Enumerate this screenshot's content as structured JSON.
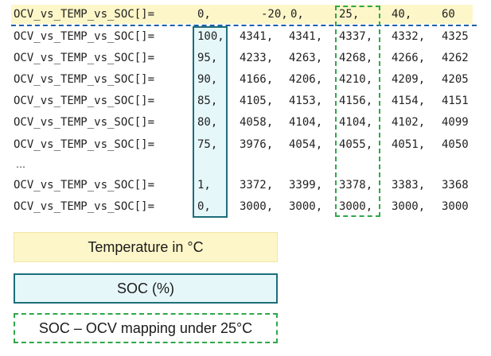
{
  "label": "OCV_vs_TEMP_vs_SOC[]=",
  "header": {
    "values": [
      "0,",
      "-20,",
      "0,",
      "25,",
      "40,",
      "60"
    ],
    "colors": {
      "temp_bg": "#fdf6c9",
      "divider": "#1f5fa8"
    }
  },
  "rows": [
    {
      "soc": "100,",
      "v": [
        "4341,",
        "4341,",
        "4337,",
        "4332,",
        "4325"
      ]
    },
    {
      "soc": "95,",
      "v": [
        "4233,",
        "4263,",
        "4268,",
        "4266,",
        "4262"
      ]
    },
    {
      "soc": "90,",
      "v": [
        "4166,",
        "4206,",
        "4210,",
        "4209,",
        "4205"
      ]
    },
    {
      "soc": "85,",
      "v": [
        "4105,",
        "4153,",
        "4156,",
        "4154,",
        "4151"
      ]
    },
    {
      "soc": "80,",
      "v": [
        "4058,",
        "4104,",
        "4104,",
        "4102,",
        "4099"
      ]
    },
    {
      "soc": "75,",
      "v": [
        "3976,",
        "4054,",
        "4055,",
        "4051,",
        "4050"
      ]
    },
    {
      "soc": "1,",
      "v": [
        "3372,",
        "3399,",
        "3378,",
        "3383,",
        "3368"
      ]
    },
    {
      "soc": "0,",
      "v": [
        "3000,",
        "3000,",
        "3000,",
        "3000,",
        "3000"
      ]
    }
  ],
  "ellipsis": "…",
  "legend": {
    "temperature": "Temperature in °C",
    "soc": "SOC (%)",
    "mapping": "SOC – OCV mapping under 25°C"
  },
  "colors": {
    "soc_box": "#1d6e7a",
    "soc_fill": "#e6f7fa",
    "mapping_box": "#2ea84a"
  }
}
